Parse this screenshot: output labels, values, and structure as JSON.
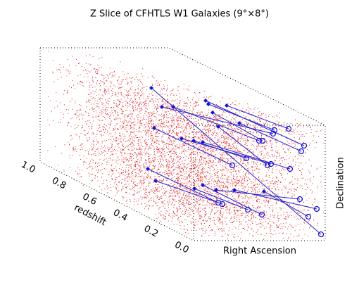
{
  "chart_data": {
    "type": "scatter3d",
    "title": "Z Slice of CFHTLS W1 Galaxies (9°×8°)",
    "xlabel": "Right Ascension",
    "ylabel": "Declination",
    "zlabel": "redshift",
    "zlim": [
      1.0,
      0.0
    ],
    "zticks": [
      {
        "value": 1.0,
        "label": "1.0"
      },
      0.8,
      0.6,
      0.4,
      0.2,
      {
        "value": 0,
        "label": "0.0"
      }
    ]
  }
}
